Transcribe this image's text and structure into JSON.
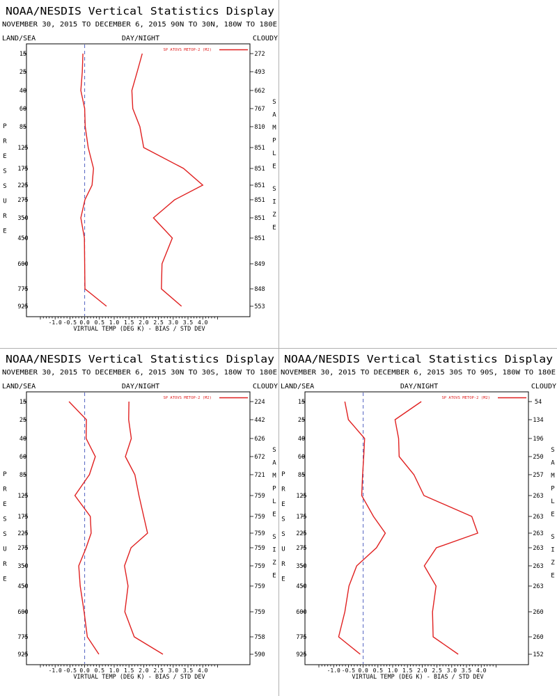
{
  "chart_data": [
    {
      "type": "line",
      "title": "NOAA/NESDIS Vertical Statistics Display",
      "subtitle": "NOVEMBER 30, 2015 TO DECEMBER 6, 2015 90N TO 30N, 180W TO 180E",
      "top_labels": {
        "left": "LAND/SEA",
        "center": "DAY/NIGHT",
        "right": "CLOUDY"
      },
      "ylabel": "PRESSURE",
      "right_axis_label": "SAMPLE SIZE",
      "xlabel": "VIRTUAL TEMP (DEG K) - BIAS / STD DEV",
      "legend": "SP ATOVS METOP-2 (M2)",
      "xlim": [
        -1.5,
        4.5
      ],
      "x_ticks": [
        "-1.0",
        "-0.5",
        "0.0",
        "0.5",
        "1.0",
        "1.5",
        "2.0",
        "2.5",
        "3.0",
        "3.5",
        "4.0"
      ],
      "y_levels": [
        "15",
        "25",
        "40",
        "60",
        "85",
        "125",
        "175",
        "225",
        "275",
        "350",
        "450",
        "600",
        "775",
        "925"
      ],
      "sample_sizes": [
        "272",
        "493",
        "662",
        "767",
        "810",
        "851",
        "851",
        "851",
        "851",
        "851",
        "851",
        "849",
        "848",
        "553"
      ],
      "series": [
        {
          "role": "bias",
          "values": [
            -0.06,
            -0.08,
            -0.13,
            0.0,
            0.02,
            0.12,
            0.3,
            0.25,
            0.01,
            -0.13,
            -0.01,
            0.0,
            0.01,
            0.74
          ]
        },
        {
          "role": "std_dev",
          "values": [
            1.95,
            1.78,
            1.6,
            1.63,
            1.87,
            2.0,
            3.35,
            4.0,
            3.05,
            2.33,
            2.97,
            2.62,
            2.6,
            3.28
          ]
        }
      ]
    },
    {
      "type": "line",
      "title": "NOAA/NESDIS Vertical Statistics Display",
      "subtitle": "NOVEMBER 30, 2015 TO DECEMBER 6, 2015 30N TO 30S, 180W TO 180E",
      "top_labels": {
        "left": "LAND/SEA",
        "center": "DAY/NIGHT",
        "right": "CLOUDY"
      },
      "ylabel": "PRESSURE",
      "right_axis_label": "SAMPLE SIZE",
      "xlabel": "VIRTUAL TEMP (DEG K) - BIAS / STD DEV",
      "legend": "SP ATOVS METOP-2 (M2)",
      "xlim": [
        -1.5,
        4.5
      ],
      "x_ticks": [
        "-1.0",
        "-0.5",
        "0.0",
        "0.5",
        "1.0",
        "1.5",
        "2.0",
        "2.5",
        "3.0",
        "3.5",
        "4.0"
      ],
      "y_levels": [
        "15",
        "25",
        "40",
        "60",
        "85",
        "125",
        "175",
        "225",
        "275",
        "350",
        "450",
        "600",
        "775",
        "925"
      ],
      "sample_sizes": [
        "224",
        "442",
        "626",
        "672",
        "721",
        "759",
        "759",
        "759",
        "759",
        "759",
        "759",
        "759",
        "758",
        "590"
      ],
      "series": [
        {
          "role": "bias",
          "values": [
            -0.53,
            0.06,
            0.05,
            0.36,
            0.16,
            -0.33,
            0.19,
            0.22,
            0.05,
            -0.2,
            -0.15,
            -0.02,
            0.09,
            0.48
          ]
        },
        {
          "role": "std_dev",
          "values": [
            1.5,
            1.49,
            1.58,
            1.38,
            1.7,
            1.84,
            2.0,
            2.13,
            1.57,
            1.35,
            1.47,
            1.36,
            1.68,
            2.65
          ]
        }
      ]
    },
    {
      "type": "line",
      "title": "NOAA/NESDIS Vertical Statistics Display",
      "subtitle": "NOVEMBER 30, 2015 TO DECEMBER 6, 2015 30S TO 90S, 180W TO 180E",
      "top_labels": {
        "left": "LAND/SEA",
        "center": "DAY/NIGHT",
        "right": "CLOUDY"
      },
      "ylabel": "PRESSURE",
      "right_axis_label": "SAMPLE SIZE",
      "xlabel": "VIRTUAL TEMP (DEG K) - BIAS / STD DEV",
      "legend": "SP ATOVS METOP-2 (M2)",
      "xlim": [
        -1.5,
        4.5
      ],
      "x_ticks": [
        "-1.0",
        "-0.5",
        "0.0",
        "0.5",
        "1.0",
        "1.5",
        "2.0",
        "2.5",
        "3.0",
        "3.5",
        "4.0"
      ],
      "y_levels": [
        "15",
        "25",
        "40",
        "60",
        "85",
        "125",
        "175",
        "225",
        "275",
        "350",
        "450",
        "600",
        "775",
        "925"
      ],
      "sample_sizes": [
        "54",
        "134",
        "196",
        "250",
        "257",
        "263",
        "263",
        "263",
        "263",
        "263",
        "263",
        "260",
        "260",
        "152"
      ],
      "series": [
        {
          "role": "bias",
          "values": [
            -0.62,
            -0.5,
            0.05,
            0.02,
            -0.02,
            -0.05,
            0.35,
            0.75,
            0.45,
            -0.22,
            -0.48,
            -0.62,
            -0.83,
            -0.1
          ]
        },
        {
          "role": "std_dev",
          "values": [
            1.97,
            1.08,
            1.2,
            1.22,
            1.72,
            2.06,
            3.68,
            3.88,
            2.48,
            2.07,
            2.47,
            2.35,
            2.37,
            3.22
          ]
        }
      ]
    }
  ]
}
